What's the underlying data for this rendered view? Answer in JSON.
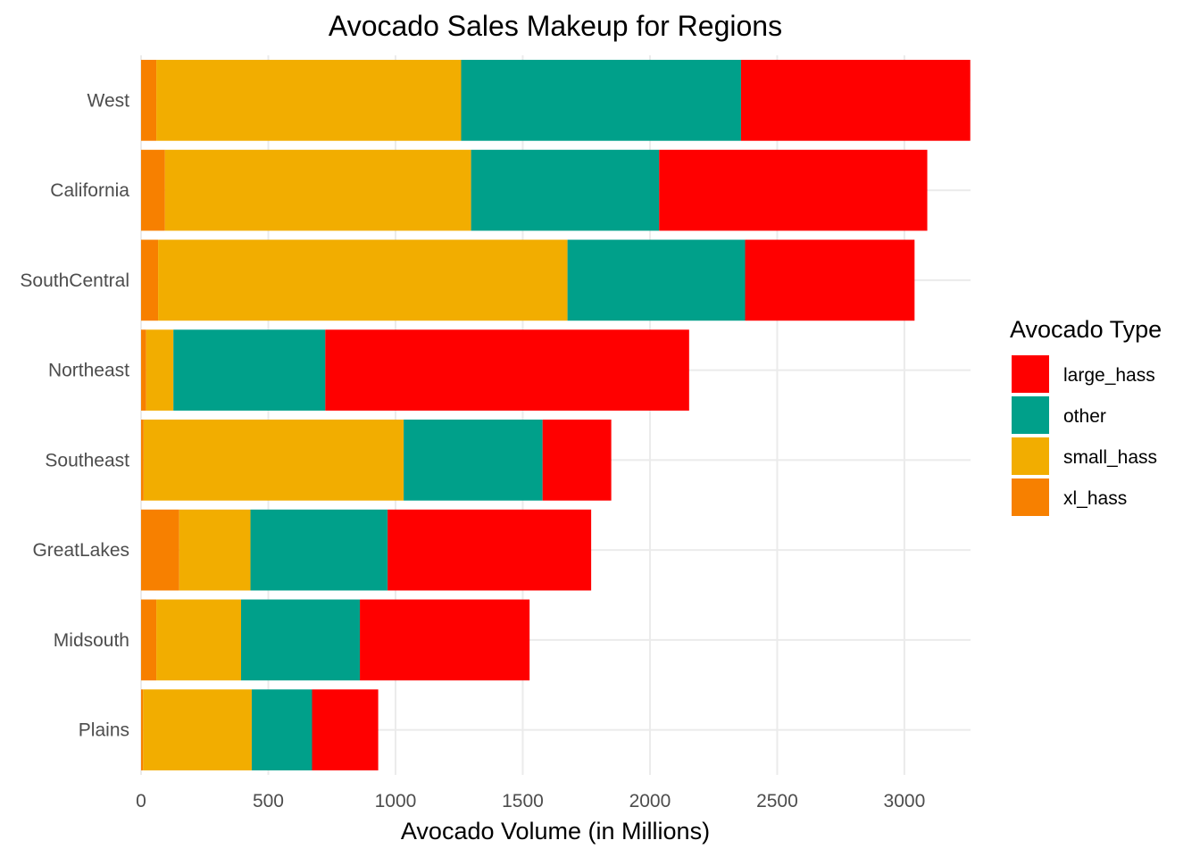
{
  "chart_data": {
    "type": "bar",
    "orientation": "horizontal",
    "stacked": true,
    "title": "Avocado Sales Makeup for Regions",
    "xlabel": "Avocado Volume (in Millions)",
    "ylabel": "",
    "xlim": [
      0,
      3260
    ],
    "x_ticks": [
      0,
      500,
      1000,
      1500,
      2000,
      2500,
      3000
    ],
    "grid": true,
    "legend_title": "Avocado Type",
    "legend_position": "right",
    "categories": [
      "Plains",
      "Midsouth",
      "GreatLakes",
      "Southeast",
      "Northeast",
      "SouthCentral",
      "California",
      "West"
    ],
    "series": [
      {
        "name": "xl_hass",
        "color": "#F78000",
        "values": [
          8,
          60,
          150,
          10,
          20,
          67,
          94,
          60
        ]
      },
      {
        "name": "small_hass",
        "color": "#F2AD00",
        "values": [
          427,
          333,
          280,
          1022,
          107,
          1609,
          1203,
          1198
        ]
      },
      {
        "name": "other",
        "color": "#00A08A",
        "values": [
          237,
          467,
          539,
          546,
          597,
          698,
          739,
          1100
        ]
      },
      {
        "name": "large_hass",
        "color": "#FF0000",
        "values": [
          260,
          667,
          800,
          270,
          1430,
          666,
          1054,
          901
        ]
      }
    ],
    "legend_order": [
      "large_hass",
      "other",
      "small_hass",
      "xl_hass"
    ]
  }
}
